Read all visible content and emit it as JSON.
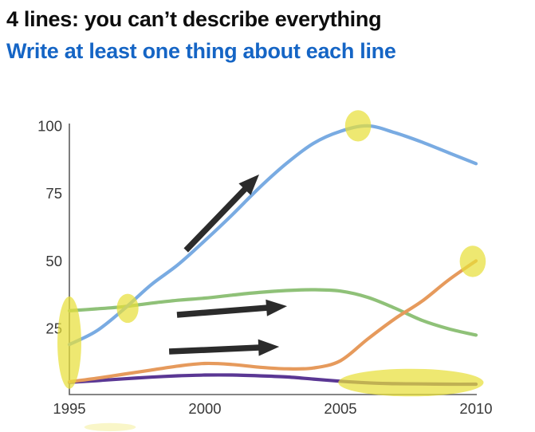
{
  "page": {
    "background": "#ffffff"
  },
  "header": {
    "title": "4 lines: you can’t describe everything",
    "title_color": "#0d0d0d",
    "subtitle": "Write at least one thing about each line",
    "subtitle_color": "#1565c5"
  },
  "chart_data": {
    "type": "line",
    "title": "",
    "xlabel": "",
    "ylabel": "",
    "x": [
      1995,
      1996,
      1997,
      1998,
      1999,
      2000,
      2001,
      2002,
      2003,
      2004,
      2005,
      2006,
      2007,
      2008,
      2009,
      2010
    ],
    "series": [
      {
        "name": "green",
        "color": "#8fc178",
        "values": [
          31.5,
          32.2,
          33,
          34.3,
          35.4,
          36.2,
          37.3,
          38.3,
          39,
          39.3,
          38.8,
          36.5,
          32.5,
          28,
          24.8,
          22.5
        ]
      },
      {
        "name": "purple",
        "color": "#5a3794",
        "values": [
          5,
          5.6,
          6.3,
          6.9,
          7.4,
          7.7,
          7.7,
          7.4,
          7,
          6.2,
          5.4,
          4.8,
          4.5,
          4.4,
          4.3,
          4.3
        ]
      },
      {
        "name": "orange",
        "color": "#e69a5c",
        "values": [
          5.2,
          6.5,
          8,
          9.5,
          11,
          12,
          11.6,
          10.6,
          10,
          10.3,
          13,
          21,
          28.5,
          35,
          43,
          50
        ]
      },
      {
        "name": "blue",
        "color": "#79abe2",
        "values": [
          19,
          24,
          32,
          41,
          48.5,
          57.5,
          67,
          77,
          86,
          93.5,
          98,
          100,
          97.5,
          94,
          90,
          86
        ]
      }
    ],
    "xlim": [
      1995,
      2010
    ],
    "ylim": [
      0,
      100
    ],
    "xticks": [
      1995,
      2000,
      2005,
      2010
    ],
    "yticks": [
      25,
      50,
      75,
      100
    ],
    "grid": false,
    "legend": false,
    "axis_color": "#5d5d5d",
    "tick_color": "#383838",
    "annotations": {
      "highlight_color": "#e8df3a",
      "highlight_opacity": 0.72,
      "highlights": [
        {
          "x": 1995.0,
          "y": 19.7,
          "rx": 0.44,
          "ry": 17.1
        },
        {
          "x": 1997.15,
          "y": 32.4,
          "rx": 0.4,
          "ry": 5.4
        },
        {
          "x": 2005.65,
          "y": 100.0,
          "rx": 0.48,
          "ry": 5.8
        },
        {
          "x": 2009.88,
          "y": 49.8,
          "rx": 0.48,
          "ry": 5.8
        },
        {
          "x": 2007.6,
          "y": 4.9,
          "rx": 2.68,
          "ry": 5.1
        },
        {
          "x": 1996.5,
          "y": -11.6,
          "rx": 0.95,
          "ry": 1.5,
          "opacity": 0.28
        }
      ],
      "arrow_color": "#2b2b2b",
      "arrows": [
        {
          "x1": 1999.3,
          "y1": 53.9,
          "x2": 2002.0,
          "y2": 82.0
        },
        {
          "x1": 1998.97,
          "y1": 30.0,
          "x2": 2003.03,
          "y2": 33.2
        },
        {
          "x1": 1998.68,
          "y1": 16.4,
          "x2": 2002.74,
          "y2": 18.2
        }
      ]
    }
  }
}
